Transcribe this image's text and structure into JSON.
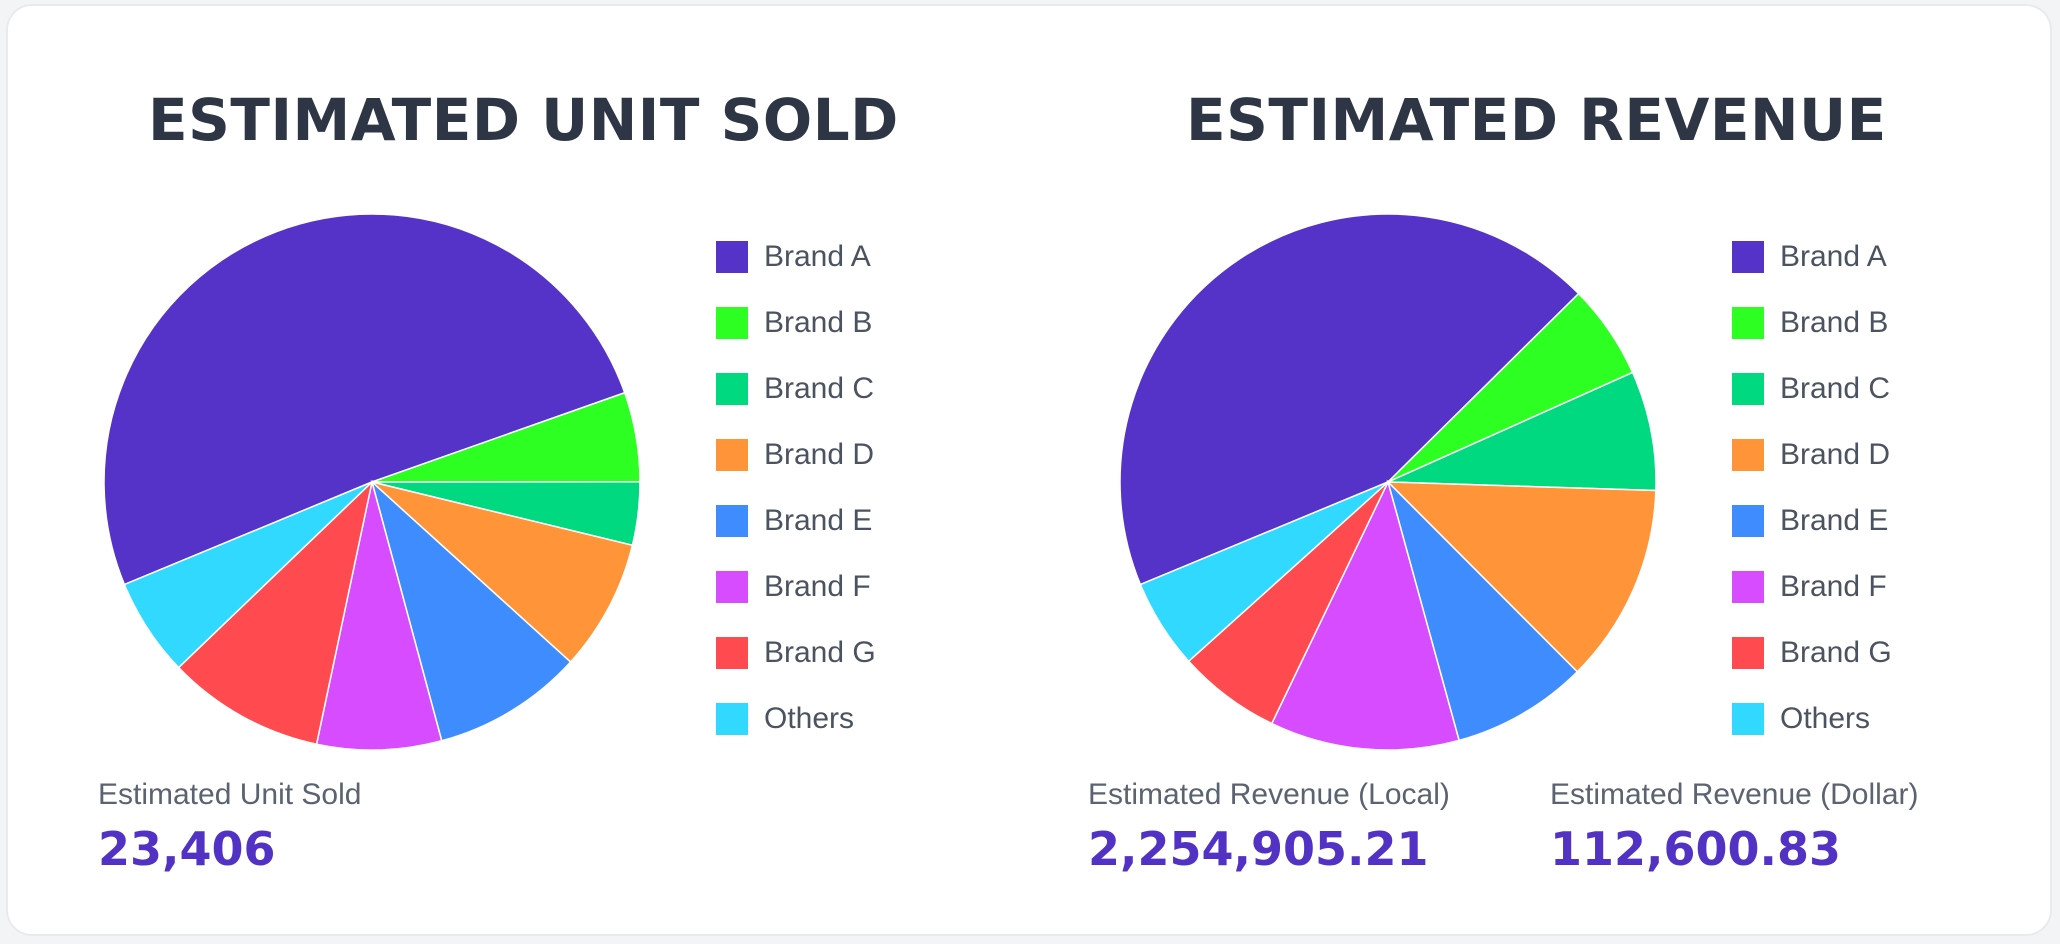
{
  "colors": {
    "Brand A": "#5533c9",
    "Brand B": "#2eff22",
    "Brand C": "#00d980",
    "Brand D": "#ff9438",
    "Brand E": "#3f8cff",
    "Brand F": "#d84cff",
    "Brand G": "#ff4b4f",
    "Others": "#31d8ff"
  },
  "chart_data": [
    {
      "type": "pie",
      "title": "ESTIMATED UNIT SOLD",
      "categories": [
        "Brand A",
        "Brand B",
        "Brand C",
        "Brand D",
        "Brand E",
        "Brand F",
        "Brand G",
        "Others"
      ],
      "values": [
        48.1,
        5.1,
        3.6,
        7.5,
        8.6,
        7.1,
        9.0,
        5.6
      ],
      "legend": "right",
      "summary": [
        {
          "label": "Estimated Unit Sold",
          "value": "23,406"
        }
      ]
    },
    {
      "type": "pie",
      "title": "ESTIMATED REVENUE",
      "categories": [
        "Brand A",
        "Brand B",
        "Brand C",
        "Brand D",
        "Brand E",
        "Brand F",
        "Brand G",
        "Others"
      ],
      "values": [
        43.8,
        5.7,
        7.2,
        12.0,
        8.2,
        11.4,
        6.2,
        5.4
      ],
      "legend": "right",
      "summary": [
        {
          "label": "Estimated Revenue (Local)",
          "value": "2,254,905.21"
        },
        {
          "label": "Estimated Revenue (Dollar)",
          "value": "112,600.83"
        }
      ]
    }
  ]
}
